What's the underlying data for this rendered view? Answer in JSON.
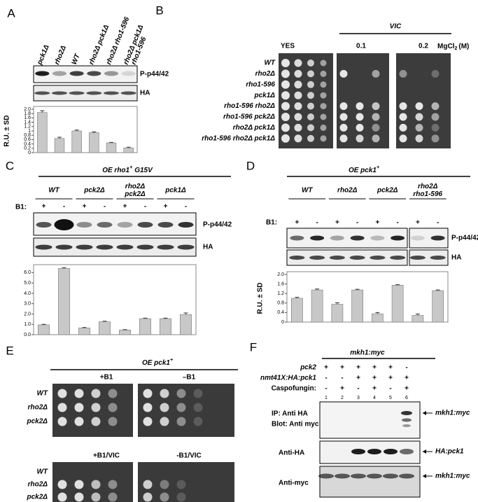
{
  "chart_data": [
    {
      "type": "bar",
      "ylabel": "R.U. ± SD",
      "values": [
        1.85,
        0.65,
        1.0,
        0.92,
        0.45,
        0.22
      ],
      "errors": [
        0.08,
        0.06,
        0.04,
        0.04,
        0.02,
        0.03
      ],
      "color": "#c8c8c8",
      "ylim": [
        0,
        2
      ],
      "yticks": [
        0,
        0.2,
        0.4,
        0.6,
        0.8,
        1,
        1.2,
        1.4,
        1.6,
        1.8,
        {
          "value": 2,
          "label": "2.0"
        }
      ]
    },
    {
      "type": "bar",
      "values": [
        0.95,
        6.4,
        0.65,
        1.25,
        0.45,
        1.55,
        1.55,
        1.95
      ],
      "errors": [
        0.05,
        0.08,
        0.04,
        0.05,
        0.04,
        0.05,
        0.05,
        0.15
      ],
      "color": "#c8c8c8",
      "ylim": [
        0,
        6.5
      ],
      "yticks": [
        {
          "value": 0,
          "label": "0.0"
        },
        {
          "value": 1,
          "label": "1.0"
        },
        {
          "value": 2,
          "label": "2.0"
        },
        {
          "value": 3,
          "label": "3.0"
        },
        {
          "value": 4,
          "label": "4.0"
        },
        {
          "value": 5,
          "label": "5.0"
        },
        {
          "value": 6,
          "label": "6.0"
        }
      ]
    },
    {
      "type": "bar",
      "ylabel": "R.U. ± SD",
      "values": [
        1.0,
        1.35,
        0.75,
        1.35,
        0.35,
        1.55,
        0.28,
        1.32
      ],
      "errors": [
        0.04,
        0.04,
        0.06,
        0.03,
        0.05,
        0.02,
        0.06,
        0.03
      ],
      "color": "#c8c8c8",
      "ylim": [
        0,
        2
      ],
      "yticks": [
        0,
        0.4,
        0.8,
        1.2,
        1.6,
        {
          "value": 2,
          "label": "2.0"
        }
      ]
    }
  ],
  "panel_a": {
    "label": "A",
    "lanes": [
      [
        "pck1Δ"
      ],
      [
        "rho2Δ"
      ],
      [
        "WT"
      ],
      [
        "rho2Δ pck1Δ"
      ],
      [
        "rho2Δ rho1-596"
      ],
      [
        "rho2Δ pck1Δ",
        "rho1-596"
      ]
    ],
    "blots": [
      "P-p44/42",
      "HA"
    ]
  },
  "panel_b": {
    "label": "B",
    "header": "VIC",
    "plates": [
      "YES",
      "0.1",
      "0.2"
    ],
    "unit": [
      "MgCl",
      "2",
      "(M)"
    ],
    "strains": [
      "WT",
      "rho2Δ",
      "rho1-596",
      "pck1Δ",
      "rho1-596  rho2Δ",
      "rho1-596  pck2Δ",
      "rho2Δ  pck1Δ",
      "rho1-596  rho2Δ  pck1Δ"
    ]
  },
  "panel_c": {
    "label": "C",
    "title": [
      "OE rho1",
      "+",
      "G15V"
    ],
    "groups": [
      [
        "WT"
      ],
      [
        "pck2Δ"
      ],
      [
        "rho2Δ",
        "pck2Δ"
      ],
      [
        "pck1Δ"
      ]
    ],
    "b1_label": "B1:",
    "b1": [
      "+",
      "-",
      "+",
      "-",
      "+",
      "-",
      "+",
      "-"
    ],
    "blots": [
      "P-p44/42",
      "HA"
    ]
  },
  "panel_d": {
    "label": "D",
    "title": [
      "OE pck1",
      "+"
    ],
    "groups": [
      [
        "WT"
      ],
      [
        "rho2Δ"
      ],
      [
        "pck2Δ"
      ],
      [
        "rho2Δ",
        "rho1-596"
      ]
    ],
    "b1_label": "B1:",
    "b1": [
      "+",
      "-",
      "+",
      "-",
      "+",
      "-",
      "+",
      "-"
    ],
    "blots": [
      "P-p44/42",
      "HA"
    ]
  },
  "panel_e": {
    "label": "E",
    "title": [
      "OE pck1",
      "+"
    ],
    "plates": [
      "+B1",
      "–B1",
      "+B1/VIC",
      "-B1/VIC"
    ],
    "strains": [
      "WT",
      "rho2Δ",
      "pck2Δ"
    ]
  },
  "panel_f": {
    "label": "F",
    "header": "mkh1:myc",
    "rows": [
      {
        "label": "pck2",
        "signs": [
          "+",
          "+",
          "+",
          "+",
          "+",
          "-"
        ]
      },
      {
        "label": "nmt41X:HA:pck1",
        "signs": [
          "-",
          "-",
          "+",
          "+",
          "+",
          "+"
        ]
      },
      {
        "label": "Caspofungin:",
        "signs": [
          "-",
          "+",
          "-",
          "+",
          "-",
          "+"
        ]
      }
    ],
    "lanes": [
      1,
      2,
      3,
      4,
      5,
      6
    ],
    "ip_label": [
      "IP: Anti HA",
      "Blot: Anti myc"
    ],
    "blots": [
      "Anti-HA",
      "Anti-myc"
    ],
    "arrows": [
      "mkh1:myc",
      "HA:pck1",
      "mkh1:myc"
    ]
  }
}
